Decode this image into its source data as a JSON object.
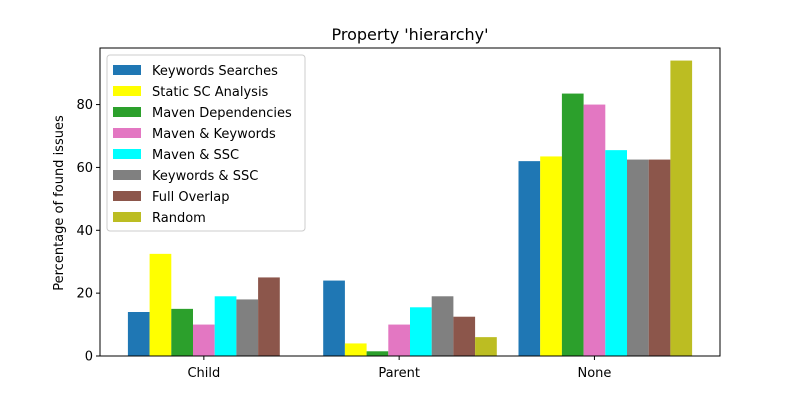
{
  "chart_data": {
    "type": "bar",
    "title": "Property 'hierarchy'",
    "xlabel": "",
    "ylabel": "Percentage of found issues",
    "categories": [
      "Child",
      "Parent",
      "None"
    ],
    "ylim": [
      0,
      98
    ],
    "yticks": [
      0,
      20,
      40,
      60,
      80
    ],
    "grid": false,
    "legend_position": "top-left",
    "series": [
      {
        "name": "Keywords Searches",
        "color": "#1f77b4",
        "values": [
          14,
          24,
          62
        ]
      },
      {
        "name": "Static SC Analysis",
        "color": "#ffff00",
        "values": [
          32.5,
          4,
          63.5
        ]
      },
      {
        "name": "Maven Dependencies",
        "color": "#2ca02c",
        "values": [
          15,
          1.5,
          83.5
        ]
      },
      {
        "name": "Maven & Keywords",
        "color": "#e377c2",
        "values": [
          10,
          10,
          80
        ]
      },
      {
        "name": "Maven & SSC",
        "color": "#00ffff",
        "values": [
          19,
          15.5,
          65.5
        ]
      },
      {
        "name": "Keywords & SSC",
        "color": "#808080",
        "values": [
          18,
          19,
          62.5
        ]
      },
      {
        "name": "Full Overlap",
        "color": "#8c564b",
        "values": [
          25,
          12.5,
          62.5
        ]
      },
      {
        "name": "Random",
        "color": "#bcbd22",
        "values": [
          0,
          6,
          94
        ]
      }
    ]
  }
}
